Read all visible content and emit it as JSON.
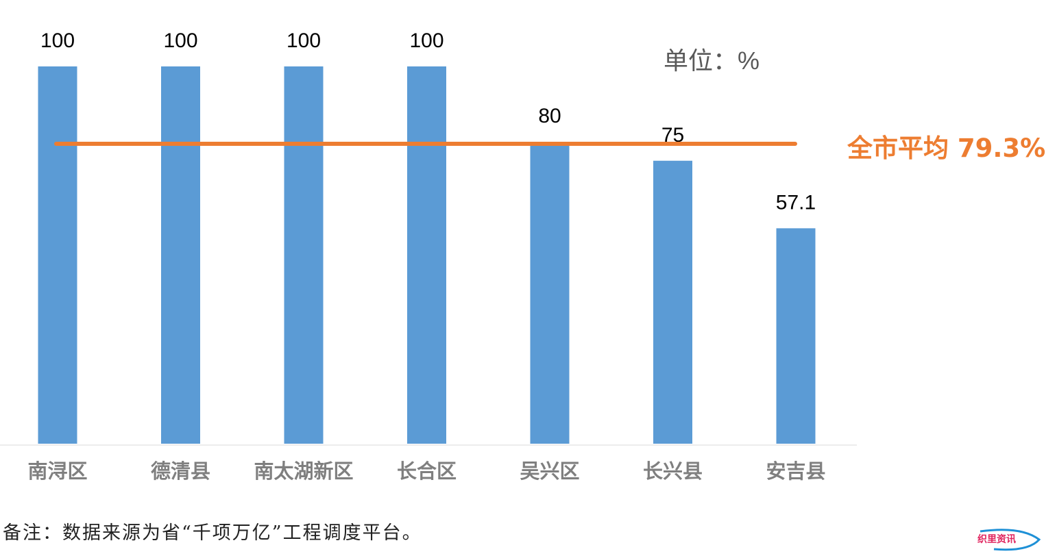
{
  "chart_data": {
    "type": "bar",
    "categories": [
      "南浔区",
      "德清县",
      "南太湖新区",
      "长合区",
      "吴兴区",
      "长兴县",
      "安吉县"
    ],
    "values": [
      100,
      100,
      100,
      100,
      80,
      75,
      57.1
    ],
    "data_labels": [
      "100",
      "100",
      "100",
      "100",
      "80",
      "75",
      "57.1"
    ],
    "average": 79.3,
    "average_label": "全市平均 79.3%",
    "unit_label": "单位：%",
    "ylim": [
      0,
      100
    ],
    "grid": false,
    "colors": {
      "bar": "#5b9bd5",
      "average_line": "#ed7d31"
    }
  },
  "footnote": "备注：数据来源为省“千项万亿”工程调度平台。",
  "watermark": "织里资讯"
}
